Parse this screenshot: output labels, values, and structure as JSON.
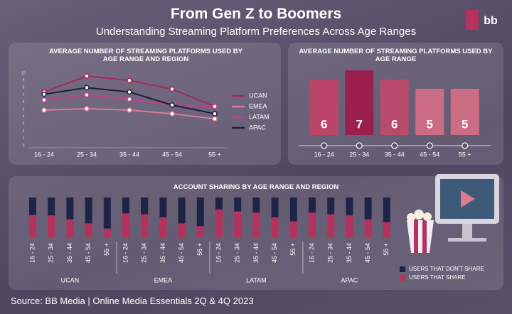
{
  "header": {
    "title": "From Gen Z to Boomers",
    "subtitle": "Understanding Streaming Platform Preferences Across Age Ranges",
    "logo": "bb"
  },
  "chart_data": [
    {
      "type": "line",
      "title": "AVERAGE NUMBER OF STREAMING PLATFORMS USED BY AGE RANGE AND REGION",
      "categories": [
        "16 - 24",
        "25 - 34",
        "35 - 44",
        "45 - 54",
        "55 +"
      ],
      "ylim": [
        0,
        10
      ],
      "yticks": [
        0,
        1,
        2,
        3,
        4,
        5,
        6,
        7,
        8,
        9,
        10
      ],
      "series": [
        {
          "name": "UCAN",
          "color": "#a3285c",
          "values": [
            7.4,
            9.6,
            9.0,
            7.8,
            5.4
          ]
        },
        {
          "name": "EMEA",
          "color": "#d47d98",
          "values": [
            4.9,
            5.1,
            4.9,
            4.4,
            3.7
          ]
        },
        {
          "name": "LATAM",
          "color": "#c03f8c",
          "values": [
            6.3,
            7.0,
            6.4,
            5.6,
            5.4
          ]
        },
        {
          "name": "APAC",
          "color": "#1c1f3c",
          "values": [
            7.1,
            8.0,
            7.4,
            5.6,
            4.4
          ]
        }
      ]
    },
    {
      "type": "bar",
      "title": "AVERAGE NUMBER OF STREAMING PLATFORMS USED BY AGE RANGE",
      "categories": [
        "16 - 24",
        "25 - 34",
        "35 - 44",
        "45 - 54",
        "55 +"
      ],
      "values": [
        6,
        7,
        6,
        5,
        5
      ],
      "colors": [
        "#bd4469",
        "#9b1f4e",
        "#b84a6c",
        "#cc6c85",
        "#cc6c85"
      ],
      "ylim": [
        0,
        7
      ]
    },
    {
      "type": "stacked_bar",
      "title": "ACCOUNT SHARING BY AGE RANGE AND REGION",
      "groups": [
        "UCAN",
        "EMEA",
        "LATAM",
        "APAC"
      ],
      "categories": [
        "16 - 24",
        "25 - 34",
        "35 - 44",
        "45 - 54",
        "55 +",
        "16 - 24",
        "25 - 34",
        "35 - 44",
        "45 - 54",
        "55 +",
        "16 - 24",
        "25 - 34",
        "35 - 44",
        "45 - 54",
        "55 +",
        "16 - 24",
        "25 - 34",
        "35 - 44",
        "45 - 54",
        "55 +"
      ],
      "ylim": [
        0,
        100
      ],
      "series": [
        {
          "name": "USERS THAT DON'T SHARE",
          "color": "#1e2447",
          "values": [
            44,
            45,
            55,
            65,
            78,
            40,
            42,
            50,
            65,
            72,
            30,
            35,
            38,
            50,
            60,
            38,
            42,
            45,
            55,
            62
          ]
        },
        {
          "name": "USERS THAT SHARE",
          "color": "#b3325e",
          "values": [
            56,
            55,
            45,
            35,
            22,
            60,
            58,
            50,
            35,
            28,
            70,
            65,
            62,
            50,
            40,
            62,
            58,
            55,
            45,
            38
          ]
        }
      ]
    }
  ],
  "source": "Source: BB Media | Online Media Essentials 2Q & 4Q 2023"
}
